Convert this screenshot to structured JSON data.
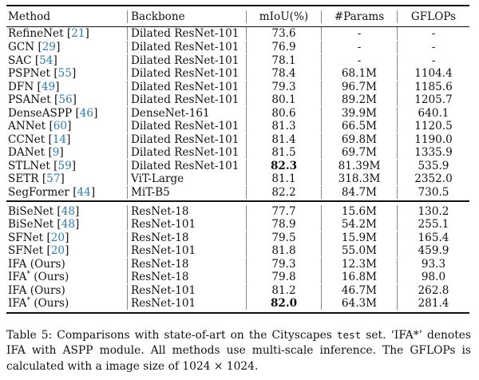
{
  "table": {
    "headers": {
      "method": "Method",
      "backbone": "Backbone",
      "miou": "mIoU(%)",
      "params": "#Params",
      "gflops": "GFLOPs"
    },
    "section1": [
      {
        "method": "RefineNet",
        "cite": "21",
        "backbone": "Dilated ResNet-101",
        "miou": "73.6",
        "params": "-",
        "gflops": "-",
        "bold": false
      },
      {
        "method": "GCN",
        "cite": "29",
        "backbone": "Dilated ResNet-101",
        "miou": "76.9",
        "params": "-",
        "gflops": "-",
        "bold": false
      },
      {
        "method": "SAC",
        "cite": "54",
        "backbone": "Dilated ResNet-101",
        "miou": "78.1",
        "params": "-",
        "gflops": "-",
        "bold": false
      },
      {
        "method": "PSPNet",
        "cite": "55",
        "backbone": "Dilated ResNet-101",
        "miou": "78.4",
        "params": "68.1M",
        "gflops": "1104.4",
        "bold": false
      },
      {
        "method": "DFN",
        "cite": "49",
        "backbone": "Dilated ResNet-101",
        "miou": "79.3",
        "params": "96.7M",
        "gflops": "1185.6",
        "bold": false
      },
      {
        "method": "PSANet",
        "cite": "56",
        "backbone": "Dilated ResNet-101",
        "miou": "80.1",
        "params": "89.2M",
        "gflops": "1205.7",
        "bold": false
      },
      {
        "method": "DenseASPP",
        "cite": "46",
        "backbone": "DenseNet-161",
        "miou": "80.6",
        "params": "39.9M",
        "gflops": "640.1",
        "bold": false
      },
      {
        "method": "ANNet",
        "cite": "60",
        "backbone": "Dilated ResNet-101",
        "miou": "81.3",
        "params": "66.5M",
        "gflops": "1120.5",
        "bold": false
      },
      {
        "method": "CCNet",
        "cite": "14",
        "backbone": "Dilated ResNet-101",
        "miou": "81.4",
        "params": "69.8M",
        "gflops": "1190.0",
        "bold": false
      },
      {
        "method": "DANet",
        "cite": "9",
        "backbone": "Dilated ResNet-101",
        "miou": "81.5",
        "params": "69.7M",
        "gflops": "1335.9",
        "bold": false
      },
      {
        "method": "STLNet",
        "cite": "59",
        "backbone": "Dilated ResNet-101",
        "miou": "82.3",
        "params": "81.39M",
        "gflops": "535.9",
        "bold": true
      },
      {
        "method": "SETR",
        "cite": "57",
        "backbone": "ViT-Large",
        "miou": "81.1",
        "params": "318.3M",
        "gflops": "2352.0",
        "bold": false
      },
      {
        "method": "SegFormer",
        "cite": "44",
        "backbone": "MiT-B5",
        "miou": "82.2",
        "params": "84.7M",
        "gflops": "730.5",
        "bold": false
      }
    ],
    "section2": [
      {
        "method": "BiSeNet",
        "cite": "48",
        "star": false,
        "suffix": "",
        "backbone": "ResNet-18",
        "miou": "77.7",
        "params": "15.6M",
        "gflops": "130.2",
        "bold": false
      },
      {
        "method": "BiSeNet",
        "cite": "48",
        "star": false,
        "suffix": "",
        "backbone": "ResNet-101",
        "miou": "78.9",
        "params": "54.2M",
        "gflops": "255.1",
        "bold": false
      },
      {
        "method": "SFNet",
        "cite": "20",
        "star": false,
        "suffix": "",
        "backbone": "ResNet-18",
        "miou": "79.5",
        "params": "15.9M",
        "gflops": "165.4",
        "bold": false
      },
      {
        "method": "SFNet",
        "cite": "20",
        "star": false,
        "suffix": "",
        "backbone": "ResNet-101",
        "miou": "81.8",
        "params": "55.0M",
        "gflops": "459.9",
        "bold": false
      },
      {
        "method": "IFA",
        "cite": "",
        "star": false,
        "suffix": "(Ours)",
        "backbone": "ResNet-18",
        "miou": "79.3",
        "params": "12.3M",
        "gflops": "93.3",
        "bold": false
      },
      {
        "method": "IFA",
        "cite": "",
        "star": true,
        "suffix": "(Ours)",
        "backbone": "ResNet-18",
        "miou": "79.8",
        "params": "16.8M",
        "gflops": "98.0",
        "bold": false
      },
      {
        "method": "IFA",
        "cite": "",
        "star": false,
        "suffix": "(Ours)",
        "backbone": "ResNet-101",
        "miou": "81.2",
        "params": "46.7M",
        "gflops": "262.8",
        "bold": false
      },
      {
        "method": "IFA",
        "cite": "",
        "star": true,
        "suffix": "(Ours)",
        "backbone": "ResNet-101",
        "miou": "82.0",
        "params": "64.3M",
        "gflops": "281.4",
        "bold": true
      }
    ]
  },
  "caption": {
    "part1": "Table 5: Comparisons with state-of-art on the Cityscapes ",
    "code": "test",
    "part2": " set. ‘IFA*’ denotes IFA with ASPP module. All methods use multi-scale inference. The GFLOPs is calculated with a image size of 1024 × 1024."
  },
  "colors": {
    "citation": "#2b7bb9",
    "text": "#111111"
  }
}
